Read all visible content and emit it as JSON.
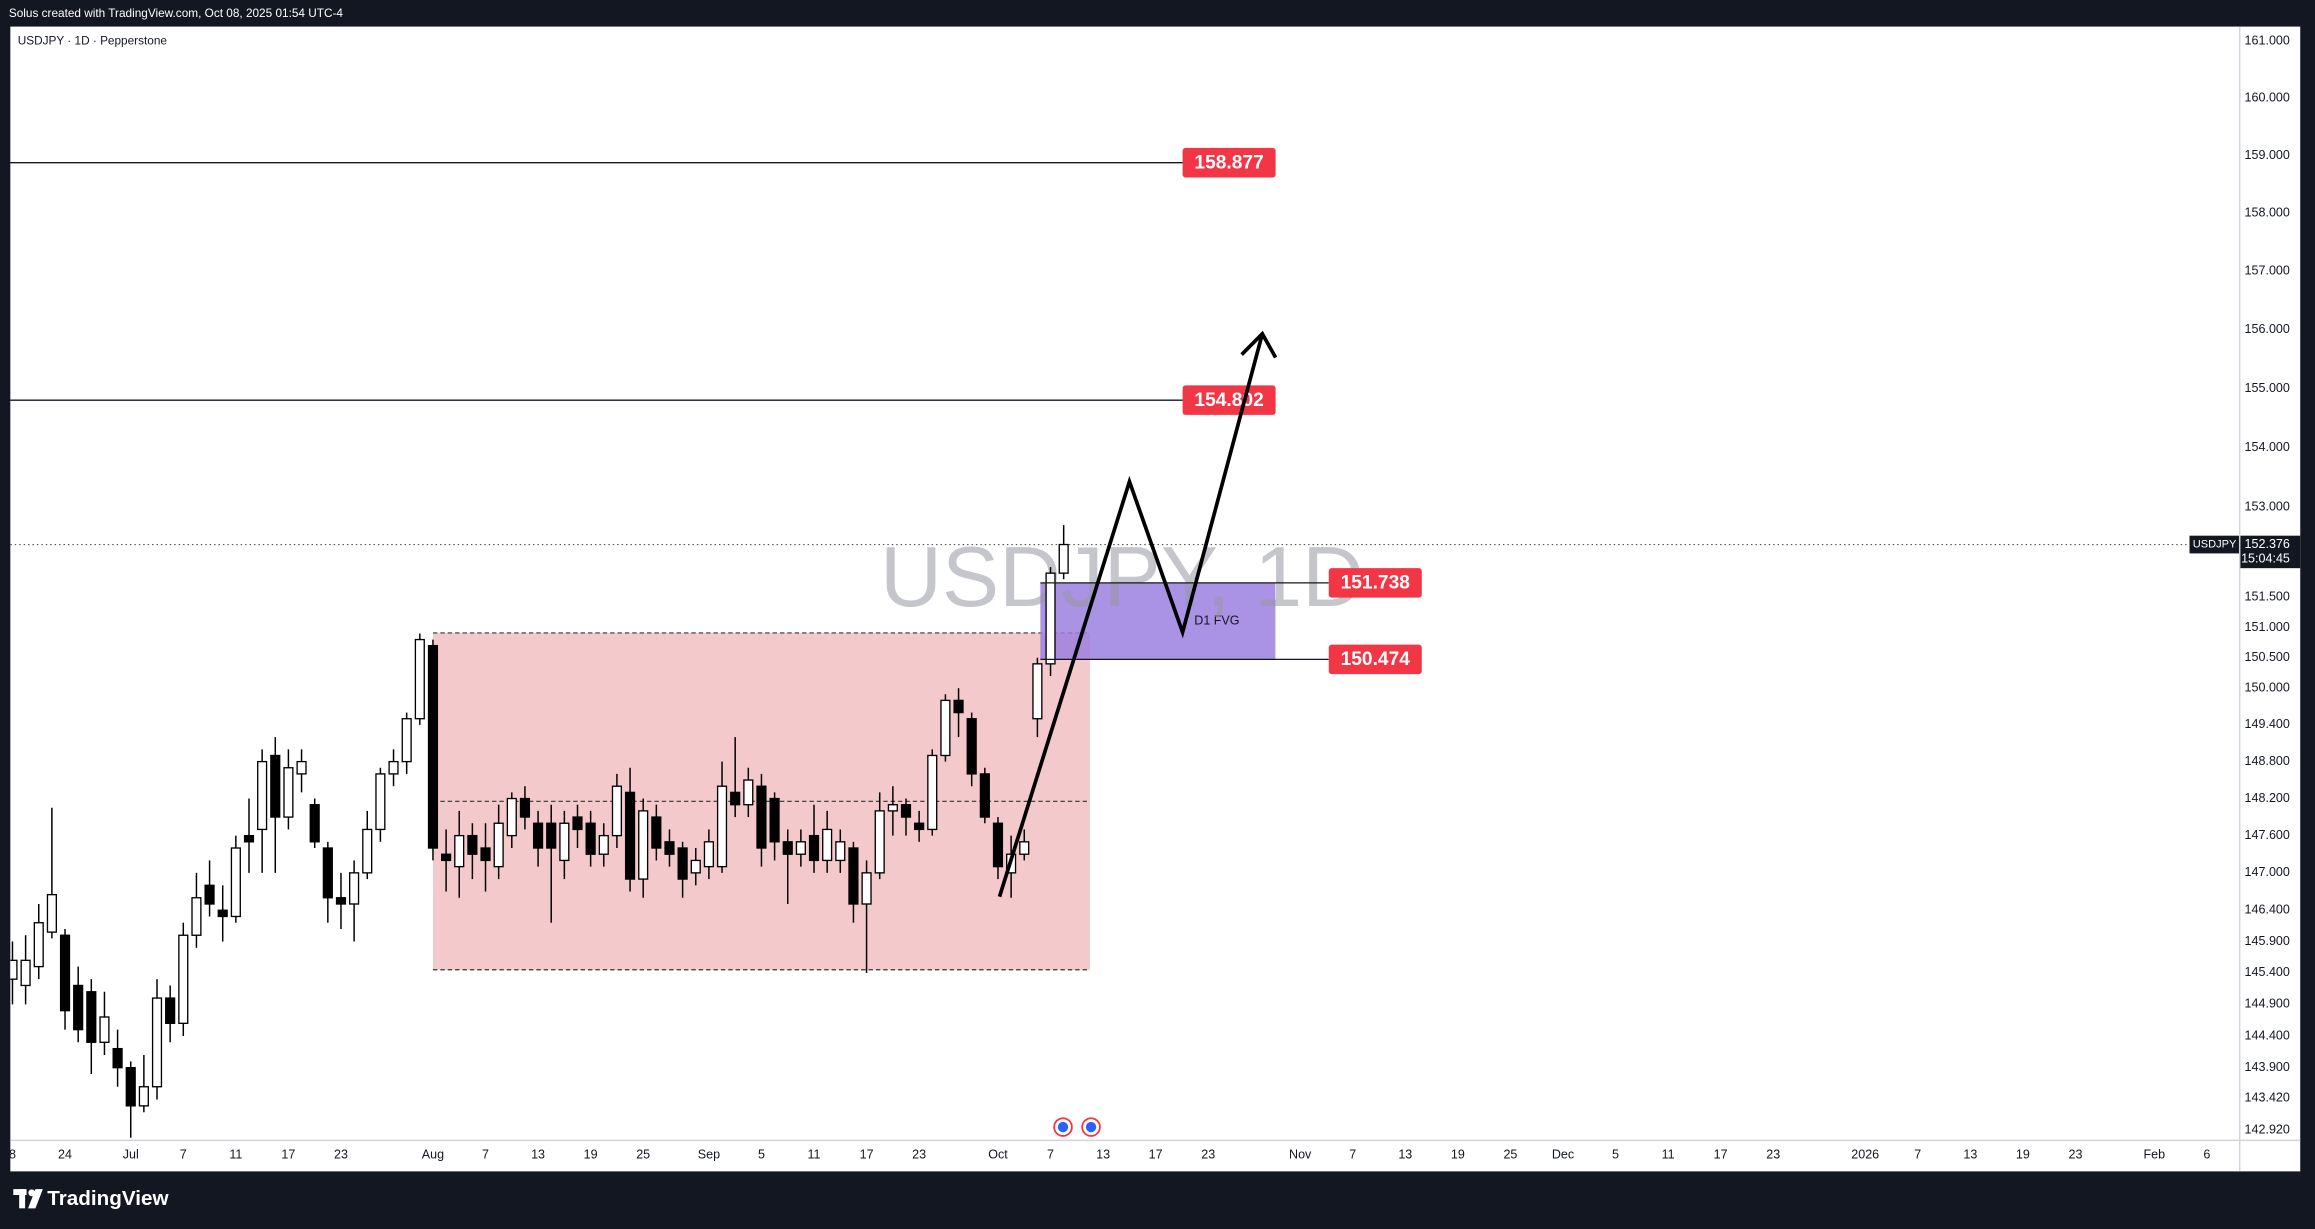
{
  "header": {
    "credit": "Solus created with TradingView.com, Oct 08, 2025 01:54 UTC-4",
    "symbol_line": "USDJPY · 1D · Pepperstone",
    "watermark": "USDJPY, 1D",
    "price_tag_symbol": "USDJPY",
    "countdown": "15:04:45",
    "fvg_label": "D1 FVG",
    "logo": "TradingView"
  },
  "chart_data": {
    "type": "candlestick",
    "log_scale": true,
    "up_color": "#ffffff",
    "down_color": "#000000",
    "border_color": "#000000",
    "ylim": [
      142.76,
      161.26
    ],
    "yticks": [
      {
        "value": 161,
        "label": "161.000"
      },
      {
        "value": 160,
        "label": "160.000"
      },
      {
        "value": 159,
        "label": "159.000"
      },
      {
        "value": 158,
        "label": "158.000"
      },
      {
        "value": 157,
        "label": "157.000"
      },
      {
        "value": 156,
        "label": "156.000"
      },
      {
        "value": 155,
        "label": "155.000"
      },
      {
        "value": 154,
        "label": "154.000"
      },
      {
        "value": 153,
        "label": "153.000"
      },
      {
        "value": 151.5,
        "label": "151.500"
      },
      {
        "value": 151,
        "label": "151.000"
      },
      {
        "value": 150.5,
        "label": "150.500"
      },
      {
        "value": 150,
        "label": "150.000"
      },
      {
        "value": 149.4,
        "label": "149.400"
      },
      {
        "value": 148.8,
        "label": "148.800"
      },
      {
        "value": 148.2,
        "label": "148.200"
      },
      {
        "value": 147.6,
        "label": "147.600"
      },
      {
        "value": 147,
        "label": "147.000"
      },
      {
        "value": 146.4,
        "label": "146.400"
      },
      {
        "value": 145.9,
        "label": "145.900"
      },
      {
        "value": 145.4,
        "label": "145.400"
      },
      {
        "value": 144.9,
        "label": "144.900"
      },
      {
        "value": 144.4,
        "label": "144.400"
      },
      {
        "value": 143.9,
        "label": "143.900"
      },
      {
        "value": 143.42,
        "label": "143.420"
      },
      {
        "value": 142.92,
        "label": "142.920"
      }
    ],
    "categories": [
      "8",
      null,
      null,
      null,
      "24",
      null,
      null,
      null,
      null,
      "Jul",
      null,
      null,
      null,
      "7",
      null,
      null,
      null,
      "11",
      null,
      null,
      null,
      "17",
      null,
      null,
      null,
      "23",
      null,
      null,
      null,
      null,
      null,
      null,
      "Aug",
      null,
      null,
      null,
      "7",
      null,
      null,
      null,
      "13",
      null,
      null,
      null,
      "19",
      null,
      null,
      null,
      "25",
      null,
      null,
      null,
      null,
      "Sep",
      null,
      null,
      null,
      "5",
      null,
      null,
      null,
      "11",
      null,
      null,
      null,
      "17",
      null,
      null,
      null,
      "23",
      null,
      null,
      null,
      null,
      null,
      "Oct",
      null,
      null,
      null,
      "7",
      null,
      null,
      null,
      "13",
      null,
      null,
      null,
      "17",
      null,
      null,
      null,
      "23",
      null,
      null,
      null,
      null,
      null,
      null,
      "Nov",
      null,
      null,
      null,
      "7",
      null,
      null,
      null,
      "13",
      null,
      null,
      null,
      "19",
      null,
      null,
      null,
      "25",
      null,
      null,
      null,
      "Dec",
      null,
      null,
      null,
      "5",
      null,
      null,
      null,
      "11",
      null,
      null,
      null,
      "17",
      null,
      null,
      null,
      "23",
      null,
      null,
      null,
      null,
      null,
      null,
      "2026",
      null,
      null,
      null,
      "7",
      null,
      null,
      null,
      "13",
      null,
      null,
      null,
      "19",
      null,
      null,
      null,
      "23",
      null,
      null,
      null,
      null,
      null,
      "Feb",
      null,
      null,
      null,
      "6",
      null,
      null
    ],
    "open": [
      145.3,
      145.2,
      145.5,
      146.05,
      146.0,
      145.2,
      145.1,
      144.3,
      144.2,
      143.9,
      143.3,
      143.6,
      145.0,
      144.6,
      146.0,
      146.8,
      146.4,
      146.3,
      147.6,
      147.7,
      148.9,
      147.9,
      148.6,
      148.1,
      147.4,
      146.6,
      146.5,
      147.0,
      147.7,
      148.6,
      148.8,
      149.5,
      150.7,
      147.3,
      147.1,
      147.6,
      147.4,
      147.1,
      147.6,
      148.2,
      147.8,
      147.8,
      147.2,
      147.9,
      147.8,
      147.3,
      147.6,
      148.3,
      146.9,
      147.9,
      147.5,
      147.4,
      147.0,
      147.1,
      147.1,
      148.3,
      148.1,
      148.4,
      148.2,
      147.5,
      147.3,
      147.6,
      147.2,
      147.2,
      147.4,
      146.5,
      147.0,
      148.0,
      148.1,
      147.8,
      147.7,
      148.9,
      149.8,
      149.5,
      148.6,
      147.8,
      147.0,
      147.3,
      149.5,
      150.4,
      151.9,
      null,
      null,
      null,
      null,
      null,
      null,
      null,
      null,
      null,
      null,
      null,
      null,
      null,
      null,
      null,
      null,
      null,
      null,
      null,
      null,
      null,
      null,
      null,
      null,
      null,
      null,
      null,
      null,
      null,
      null,
      null,
      null,
      null,
      null,
      null,
      null,
      null,
      null,
      null,
      null,
      null,
      null,
      null,
      null,
      null,
      null,
      null,
      null,
      null,
      null,
      null,
      null,
      null,
      null,
      null,
      null,
      null,
      null,
      null,
      null,
      null,
      null,
      null,
      null,
      null,
      null,
      null,
      null,
      null,
      null,
      null,
      null,
      null,
      null,
      null,
      null,
      null,
      null,
      null,
      null,
      null,
      null,
      null,
      null,
      null,
      null,
      null,
      null,
      null
    ],
    "high": [
      145.9,
      146.0,
      146.5,
      148.05,
      146.1,
      145.5,
      145.3,
      145.1,
      144.5,
      144.0,
      144.1,
      145.3,
      145.2,
      146.2,
      147.0,
      147.2,
      146.8,
      147.6,
      148.2,
      149.0,
      149.2,
      149.0,
      149.0,
      148.2,
      147.5,
      147.0,
      147.2,
      148.0,
      148.7,
      149.0,
      149.6,
      150.9,
      150.8,
      147.7,
      148.0,
      147.8,
      147.8,
      148.1,
      148.3,
      148.4,
      148.0,
      148.1,
      148.0,
      148.1,
      148.0,
      147.8,
      148.6,
      148.7,
      148.2,
      148.1,
      147.7,
      147.5,
      147.4,
      147.7,
      148.8,
      149.2,
      148.7,
      148.6,
      148.3,
      147.7,
      147.7,
      148.1,
      148.0,
      147.7,
      147.5,
      147.2,
      148.3,
      148.4,
      148.2,
      148.0,
      149.0,
      149.9,
      150.0,
      149.6,
      148.7,
      147.9,
      147.6,
      147.7,
      150.5,
      152.0,
      152.7,
      null,
      null,
      null,
      null,
      null,
      null,
      null,
      null,
      null,
      null,
      null,
      null,
      null,
      null,
      null,
      null,
      null,
      null,
      null,
      null,
      null,
      null,
      null,
      null,
      null,
      null,
      null,
      null,
      null,
      null,
      null,
      null,
      null,
      null,
      null,
      null,
      null,
      null,
      null,
      null,
      null,
      null,
      null,
      null,
      null,
      null,
      null,
      null,
      null,
      null,
      null,
      null,
      null,
      null,
      null,
      null,
      null,
      null,
      null,
      null,
      null,
      null,
      null,
      null,
      null,
      null,
      null,
      null,
      null,
      null,
      null,
      null,
      null,
      null,
      null,
      null,
      null,
      null,
      null,
      null,
      null,
      null,
      null,
      null,
      null,
      null,
      null,
      null,
      null
    ],
    "low": [
      144.9,
      144.9,
      145.3,
      145.95,
      144.5,
      144.3,
      143.8,
      144.1,
      143.6,
      142.8,
      143.2,
      143.4,
      144.3,
      144.4,
      145.8,
      146.3,
      145.9,
      146.2,
      147.0,
      147.0,
      147.0,
      147.7,
      148.3,
      147.4,
      146.2,
      146.1,
      145.9,
      146.9,
      147.5,
      148.4,
      148.6,
      149.4,
      147.2,
      146.7,
      146.6,
      146.9,
      146.7,
      146.9,
      147.4,
      147.7,
      147.1,
      146.2,
      146.9,
      147.4,
      147.1,
      147.1,
      147.4,
      146.7,
      146.6,
      147.2,
      147.1,
      146.6,
      146.8,
      146.9,
      147.0,
      147.9,
      147.9,
      147.1,
      147.2,
      146.5,
      147.1,
      147.0,
      147.0,
      147.0,
      146.2,
      145.4,
      146.9,
      147.6,
      147.6,
      147.5,
      147.6,
      148.8,
      149.2,
      148.4,
      147.8,
      146.9,
      146.6,
      147.2,
      149.2,
      150.2,
      151.8,
      null,
      null,
      null,
      null,
      null,
      null,
      null,
      null,
      null,
      null,
      null,
      null,
      null,
      null,
      null,
      null,
      null,
      null,
      null,
      null,
      null,
      null,
      null,
      null,
      null,
      null,
      null,
      null,
      null,
      null,
      null,
      null,
      null,
      null,
      null,
      null,
      null,
      null,
      null,
      null,
      null,
      null,
      null,
      null,
      null,
      null,
      null,
      null,
      null,
      null,
      null,
      null,
      null,
      null,
      null,
      null,
      null,
      null,
      null,
      null,
      null,
      null,
      null,
      null,
      null,
      null,
      null,
      null,
      null,
      null,
      null,
      null,
      null,
      null,
      null,
      null,
      null,
      null,
      null,
      null,
      null,
      null,
      null,
      null,
      null,
      null,
      null,
      null,
      null
    ],
    "close": [
      145.6,
      145.6,
      146.2,
      146.65,
      144.8,
      144.5,
      144.3,
      144.7,
      143.9,
      143.3,
      143.6,
      145.0,
      144.6,
      146.0,
      146.6,
      146.5,
      146.3,
      147.4,
      147.5,
      148.8,
      147.9,
      148.7,
      148.8,
      147.5,
      146.6,
      146.5,
      147.0,
      147.7,
      148.6,
      148.8,
      149.5,
      150.8,
      147.4,
      147.2,
      147.6,
      147.3,
      147.2,
      147.8,
      148.2,
      147.9,
      147.4,
      147.4,
      147.8,
      147.7,
      147.3,
      147.6,
      148.4,
      146.9,
      148.0,
      147.4,
      147.3,
      146.9,
      147.2,
      147.5,
      148.4,
      148.1,
      148.5,
      147.4,
      147.5,
      147.3,
      147.5,
      147.2,
      147.7,
      147.5,
      146.5,
      147.0,
      148.0,
      148.1,
      147.9,
      147.7,
      148.9,
      149.8,
      149.6,
      148.6,
      147.9,
      147.1,
      147.3,
      147.5,
      150.4,
      151.9,
      152.376,
      null,
      null,
      null,
      null,
      null,
      null,
      null,
      null,
      null,
      null,
      null,
      null,
      null,
      null,
      null,
      null,
      null,
      null,
      null,
      null,
      null,
      null,
      null,
      null,
      null,
      null,
      null,
      null,
      null,
      null,
      null,
      null,
      null,
      null,
      null,
      null,
      null,
      null,
      null,
      null,
      null,
      null,
      null,
      null,
      null,
      null,
      null,
      null,
      null,
      null,
      null,
      null,
      null,
      null,
      null,
      null,
      null,
      null,
      null,
      null,
      null,
      null,
      null,
      null,
      null,
      null,
      null,
      null,
      null,
      null,
      null,
      null,
      null,
      null,
      null,
      null,
      null,
      null,
      null,
      null,
      null,
      null,
      null,
      null,
      null,
      null,
      null,
      null,
      null
    ],
    "last_price": 152.376,
    "levels": [
      158.877,
      154.802,
      151.738,
      150.474
    ],
    "level_color": "#f23645",
    "range_box": {
      "high": 150.91,
      "low": 145.45
    },
    "range_color": "#f4c9cb",
    "fvg_color": "#9b7fe0"
  }
}
